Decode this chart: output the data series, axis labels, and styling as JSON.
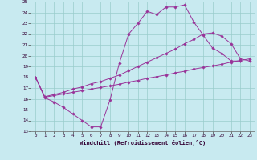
{
  "bg_color": "#c8eaf0",
  "line_color": "#993399",
  "grid_color": "#99cccc",
  "xlabel": "Windchill (Refroidissement éolien,°C)",
  "xlim": [
    -0.5,
    23.5
  ],
  "ylim": [
    13,
    25
  ],
  "xticks": [
    0,
    1,
    2,
    3,
    4,
    5,
    6,
    7,
    8,
    9,
    10,
    11,
    12,
    13,
    14,
    15,
    16,
    17,
    18,
    19,
    20,
    21,
    22,
    23
  ],
  "yticks": [
    13,
    14,
    15,
    16,
    17,
    18,
    19,
    20,
    21,
    22,
    23,
    24,
    25
  ],
  "line1_x": [
    0,
    1,
    2,
    3,
    4,
    5,
    6,
    7,
    8,
    9,
    10,
    11,
    12,
    13,
    14,
    15,
    16,
    17,
    18,
    19,
    20,
    21,
    22
  ],
  "line1_y": [
    18,
    16.1,
    15.7,
    15.2,
    14.6,
    14.0,
    13.4,
    13.4,
    15.9,
    19.3,
    22.0,
    23.0,
    24.1,
    23.8,
    24.5,
    24.5,
    24.7,
    23.1,
    21.9,
    20.7,
    20.2,
    19.5,
    19.5
  ],
  "line2_x": [
    0,
    1,
    2,
    3,
    4,
    5,
    6,
    7,
    8,
    9,
    10,
    11,
    12,
    13,
    14,
    15,
    16,
    17,
    18,
    19,
    20,
    21,
    22,
    23
  ],
  "line2_y": [
    18,
    16.15,
    16.3,
    16.45,
    16.6,
    16.75,
    16.9,
    17.05,
    17.2,
    17.35,
    17.55,
    17.7,
    17.9,
    18.05,
    18.2,
    18.4,
    18.55,
    18.75,
    18.9,
    19.05,
    19.2,
    19.4,
    19.55,
    19.7
  ],
  "line3_x": [
    0,
    1,
    2,
    3,
    4,
    5,
    6,
    7,
    8,
    9,
    10,
    11,
    12,
    13,
    14,
    15,
    16,
    17,
    18,
    19,
    20,
    21,
    22,
    23
  ],
  "line3_y": [
    18,
    16.2,
    16.4,
    16.6,
    16.9,
    17.1,
    17.4,
    17.6,
    17.9,
    18.2,
    18.6,
    19.0,
    19.4,
    19.8,
    20.2,
    20.6,
    21.1,
    21.5,
    22.0,
    22.1,
    21.8,
    21.1,
    19.7,
    19.5
  ]
}
